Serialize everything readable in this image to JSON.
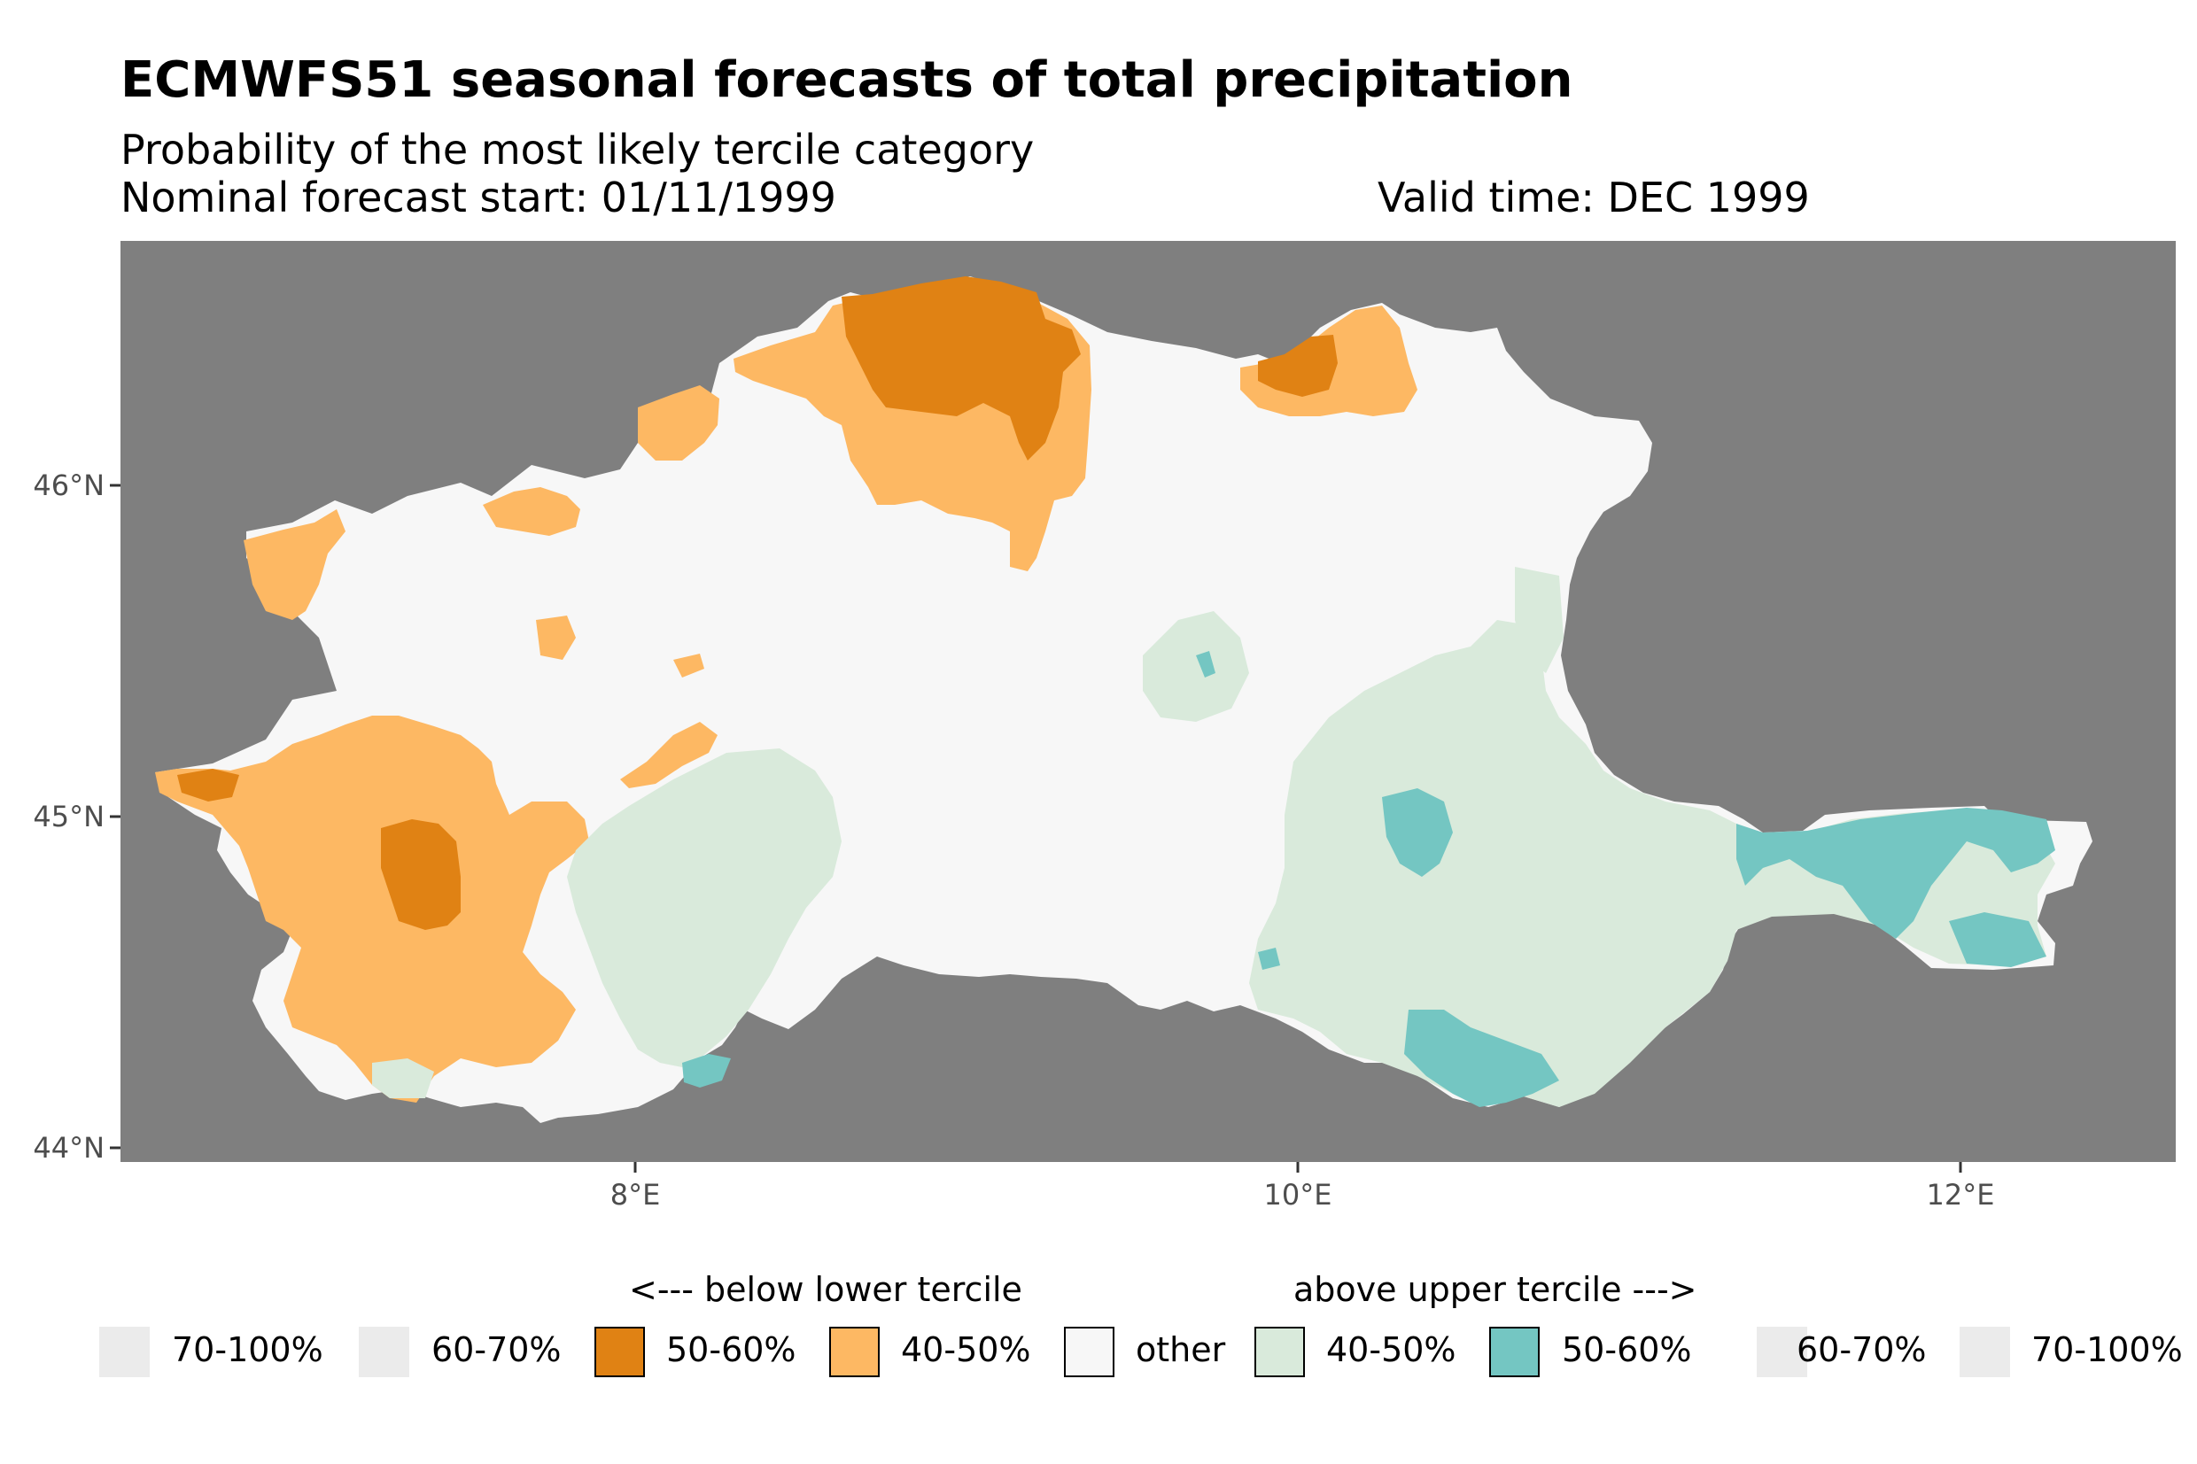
{
  "title": "ECMWFS51 seasonal forecasts of total precipitation",
  "subtitle": "Probability of the most likely tercile category",
  "forecast_start": "Nominal forecast start: 01/11/1999",
  "valid_time": "Valid time: DEC 1999",
  "axes": {
    "y_ticks": [
      "46°N",
      "45°N",
      "44°N"
    ],
    "x_ticks": [
      "8°E",
      "10°E",
      "12°E"
    ]
  },
  "legend": {
    "below_heading": "<--- below lower tercile",
    "above_heading": "above upper tercile --->",
    "items": [
      {
        "label": "70-100%",
        "color": "#ebebeb"
      },
      {
        "label": "60-70%",
        "color": "#ebebeb"
      },
      {
        "label": "50-60%",
        "color": "#e08214"
      },
      {
        "label": "40-50%",
        "color": "#fdb863"
      },
      {
        "label": "other",
        "color": "#f7f7f7"
      },
      {
        "label": "40-50%",
        "color": "#d9eadb"
      },
      {
        "label": "50-60%",
        "color": "#74c6c2"
      },
      {
        "label": "60-70%",
        "color": "#ebebeb"
      },
      {
        "label": "70-100%",
        "color": "#ebebeb"
      }
    ]
  },
  "colors": {
    "background_ocean": "#7f7f7f",
    "below_50_60": "#e08214",
    "below_40_50": "#fdb863",
    "other": "#f7f7f7",
    "above_40_50": "#d9eadb",
    "above_50_60": "#74c6c2"
  }
}
